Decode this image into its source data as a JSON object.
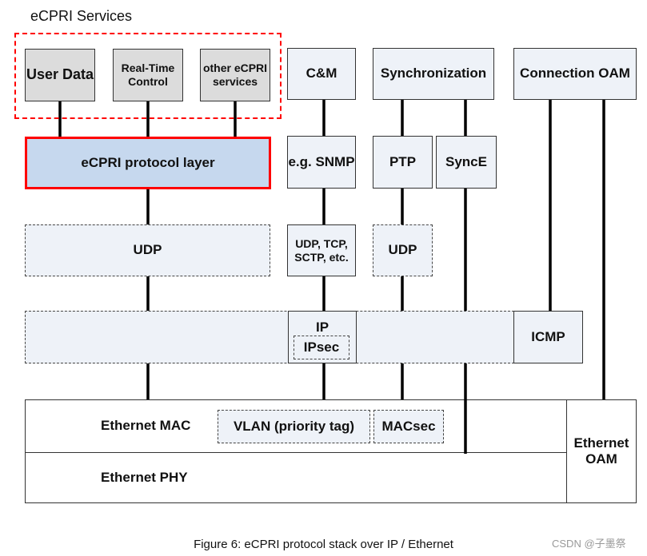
{
  "title": "eCPRI Services",
  "boxes": {
    "user_data": "User Data",
    "rt_control": "Real-Time Control",
    "other_services": "other eCPRI services",
    "cm": "C&M",
    "sync": "Synchronization",
    "conn_oam": "Connection OAM",
    "ecpri_layer": "eCPRI protocol layer",
    "snmp": "e.g. SNMP",
    "ptp": "PTP",
    "synce": "SyncE",
    "udp_main": "UDP",
    "udp_tcp": "UDP, TCP, SCTP, etc.",
    "udp_ptp": "UDP",
    "ip": "IP",
    "ipsec": "IPsec",
    "icmp": "ICMP",
    "eth_mac": "Ethernet MAC",
    "vlan": "VLAN (priority tag)",
    "macsec": "MACsec",
    "eth_phy": "Ethernet PHY",
    "eth_oam": "Ethernet OAM"
  },
  "caption": "Figure 6: eCPRI protocol stack over IP / Ethernet",
  "watermark": "CSDN @子墨祭",
  "colors": {
    "highlight": "#ff0000",
    "ecpri_fill": "#c6d8ee",
    "service_fill": "#dcdcdc",
    "box_fill": "#eef2f8"
  }
}
